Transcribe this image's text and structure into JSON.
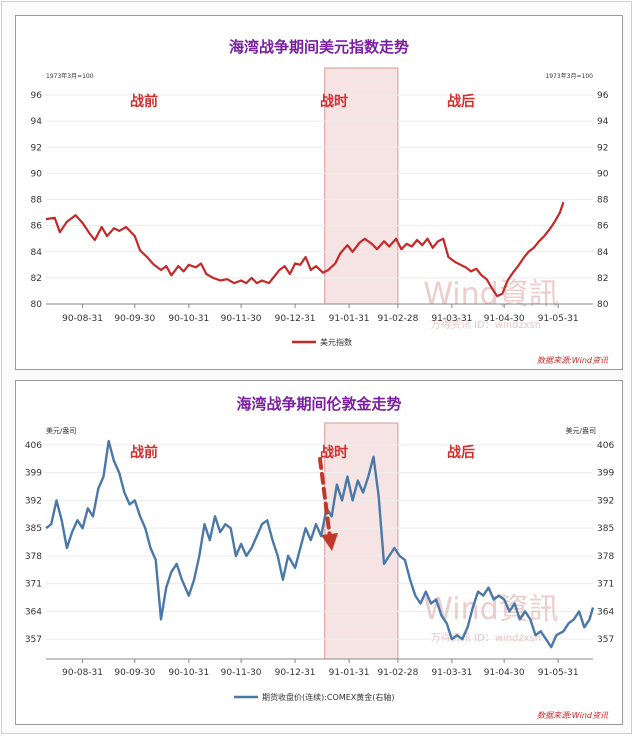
{
  "colors": {
    "title": "#7b1fa2",
    "phase_label": "#d32f2f",
    "usd_line": "#c62828",
    "gold_line": "#4a78a8",
    "war_band_fill": "#f6e4e4",
    "war_band_stroke": "#d79a9a",
    "arrow": "#c0392b",
    "watermark": "#e4b8b8",
    "source": "#c62828",
    "axis_text": "#333333",
    "grid": "#ececec"
  },
  "chart_data": [
    {
      "type": "line",
      "title": "海湾战争期间美元指数走势",
      "left_note": "1973年3月=100",
      "right_note": "1973年3月=100",
      "legend": "美元指数",
      "source": "数据来源:Wind资讯",
      "watermark": "Wind資訊",
      "watermark_sub": "万得资讯  ID：windzxsh",
      "phases": [
        "战前",
        "战时",
        "战后"
      ],
      "x_ticks": [
        "90-08-31",
        "90-09-30",
        "90-10-31",
        "90-11-30",
        "90-12-31",
        "91-01-31",
        "91-02-28",
        "91-03-31",
        "91-04-30",
        "91-05-31"
      ],
      "war_band": [
        "1991-01-17",
        "1991-02-28"
      ],
      "x_range": [
        "1990-08-10",
        "1991-06-20"
      ],
      "ylim": [
        80,
        97
      ],
      "y_ticks": [
        80,
        82,
        84,
        86,
        88,
        90,
        92,
        94,
        96
      ],
      "grid": "horizontal",
      "series": [
        {
          "name": "美元指数",
          "points": [
            [
              "1990-08-10",
              86.5
            ],
            [
              "1990-08-15",
              86.6
            ],
            [
              "1990-08-18",
              85.5
            ],
            [
              "1990-08-22",
              86.3
            ],
            [
              "1990-08-27",
              86.8
            ],
            [
              "1990-08-31",
              86.2
            ],
            [
              "1990-09-04",
              85.4
            ],
            [
              "1990-09-07",
              84.9
            ],
            [
              "1990-09-11",
              85.9
            ],
            [
              "1990-09-14",
              85.2
            ],
            [
              "1990-09-18",
              85.8
            ],
            [
              "1990-09-21",
              85.6
            ],
            [
              "1990-09-25",
              85.9
            ],
            [
              "1990-09-30",
              85.2
            ],
            [
              "1990-10-03",
              84.1
            ],
            [
              "1990-10-07",
              83.6
            ],
            [
              "1990-10-11",
              83.0
            ],
            [
              "1990-10-15",
              82.6
            ],
            [
              "1990-10-18",
              82.9
            ],
            [
              "1990-10-21",
              82.2
            ],
            [
              "1990-10-25",
              82.9
            ],
            [
              "1990-10-28",
              82.5
            ],
            [
              "1990-10-31",
              83.0
            ],
            [
              "1990-11-04",
              82.8
            ],
            [
              "1990-11-07",
              83.1
            ],
            [
              "1990-11-10",
              82.3
            ],
            [
              "1990-11-14",
              82.0
            ],
            [
              "1990-11-18",
              81.8
            ],
            [
              "1990-11-22",
              81.9
            ],
            [
              "1990-11-26",
              81.6
            ],
            [
              "1990-11-30",
              81.8
            ],
            [
              "1990-12-03",
              81.6
            ],
            [
              "1990-12-06",
              82.0
            ],
            [
              "1990-12-09",
              81.6
            ],
            [
              "1990-12-12",
              81.8
            ],
            [
              "1990-12-16",
              81.6
            ],
            [
              "1990-12-19",
              82.1
            ],
            [
              "1990-12-22",
              82.6
            ],
            [
              "1990-12-25",
              82.9
            ],
            [
              "1990-12-28",
              82.3
            ],
            [
              "1990-12-31",
              83.1
            ],
            [
              "1991-01-03",
              83.0
            ],
            [
              "1991-01-06",
              83.6
            ],
            [
              "1991-01-09",
              82.6
            ],
            [
              "1991-01-12",
              82.9
            ],
            [
              "1991-01-16",
              82.4
            ],
            [
              "1991-01-19",
              82.6
            ],
            [
              "1991-01-23",
              83.1
            ],
            [
              "1991-01-26",
              83.9
            ],
            [
              "1991-01-30",
              84.5
            ],
            [
              "1991-02-02",
              84.0
            ],
            [
              "1991-02-06",
              84.7
            ],
            [
              "1991-02-09",
              85.0
            ],
            [
              "1991-02-13",
              84.6
            ],
            [
              "1991-02-16",
              84.2
            ],
            [
              "1991-02-20",
              84.8
            ],
            [
              "1991-02-23",
              84.4
            ],
            [
              "1991-02-27",
              85.0
            ],
            [
              "1991-03-02",
              84.2
            ],
            [
              "1991-03-05",
              84.6
            ],
            [
              "1991-03-08",
              84.4
            ],
            [
              "1991-03-11",
              84.9
            ],
            [
              "1991-03-14",
              84.5
            ],
            [
              "1991-03-17",
              85.0
            ],
            [
              "1991-03-20",
              84.3
            ],
            [
              "1991-03-23",
              84.8
            ],
            [
              "1991-03-26",
              85.0
            ],
            [
              "1991-03-29",
              83.6
            ],
            [
              "1991-04-02",
              83.2
            ],
            [
              "1991-04-05",
              83.0
            ],
            [
              "1991-04-08",
              82.8
            ],
            [
              "1991-04-11",
              82.5
            ],
            [
              "1991-04-14",
              82.7
            ],
            [
              "1991-04-17",
              82.2
            ],
            [
              "1991-04-20",
              81.9
            ],
            [
              "1991-04-23",
              81.2
            ],
            [
              "1991-04-26",
              80.6
            ],
            [
              "1991-04-29",
              80.8
            ],
            [
              "1991-05-02",
              81.8
            ],
            [
              "1991-05-05",
              82.4
            ],
            [
              "1991-05-08",
              82.9
            ],
            [
              "1991-05-11",
              83.5
            ],
            [
              "1991-05-14",
              84.0
            ],
            [
              "1991-05-17",
              84.3
            ],
            [
              "1991-05-20",
              84.8
            ],
            [
              "1991-05-23",
              85.2
            ],
            [
              "1991-05-26",
              85.7
            ],
            [
              "1991-05-29",
              86.3
            ],
            [
              "1991-06-01",
              87.0
            ],
            [
              "1991-06-03",
              87.8
            ]
          ]
        }
      ]
    },
    {
      "type": "line",
      "title": "海湾战争期间伦敦金走势",
      "left_note": "美元/盎司",
      "right_note": "美元/盎司",
      "legend": "期货收盘价(连续):COMEX黄金(右轴)",
      "source": "数据来源:Wind资讯",
      "watermark": "Wind資訊",
      "watermark_sub": "万得资讯  ID：windzxsh",
      "phases": [
        "战前",
        "战时",
        "战后"
      ],
      "x_ticks": [
        "90-08-31",
        "90-09-30",
        "90-10-31",
        "90-11-30",
        "90-12-31",
        "91-01-31",
        "91-02-28",
        "91-03-31",
        "91-04-30",
        "91-05-31"
      ],
      "war_band": [
        "1991-01-17",
        "1991-02-28"
      ],
      "x_range": [
        "1990-08-10",
        "1991-06-20"
      ],
      "ylim": [
        352,
        408
      ],
      "y_ticks": [
        357,
        364,
        371,
        378,
        385,
        392,
        399,
        406
      ],
      "grid": "horizontal",
      "series": [
        {
          "name": "期货收盘价(连续):COMEX黄金(右轴)",
          "points": [
            [
              "1990-08-10",
              385
            ],
            [
              "1990-08-13",
              386
            ],
            [
              "1990-08-16",
              392
            ],
            [
              "1990-08-19",
              387
            ],
            [
              "1990-08-22",
              380
            ],
            [
              "1990-08-25",
              384
            ],
            [
              "1990-08-28",
              387
            ],
            [
              "1990-08-31",
              385
            ],
            [
              "1990-09-03",
              390
            ],
            [
              "1990-09-06",
              388
            ],
            [
              "1990-09-09",
              395
            ],
            [
              "1990-09-12",
              398
            ],
            [
              "1990-09-15",
              407
            ],
            [
              "1990-09-18",
              402
            ],
            [
              "1990-09-21",
              399
            ],
            [
              "1990-09-24",
              394
            ],
            [
              "1990-09-27",
              391
            ],
            [
              "1990-09-30",
              392
            ],
            [
              "1990-10-03",
              388
            ],
            [
              "1990-10-06",
              385
            ],
            [
              "1990-10-09",
              380
            ],
            [
              "1990-10-12",
              377
            ],
            [
              "1990-10-15",
              362
            ],
            [
              "1990-10-18",
              370
            ],
            [
              "1990-10-21",
              374
            ],
            [
              "1990-10-24",
              376
            ],
            [
              "1990-10-27",
              372
            ],
            [
              "1990-10-31",
              368
            ],
            [
              "1990-11-03",
              372
            ],
            [
              "1990-11-06",
              378
            ],
            [
              "1990-11-09",
              386
            ],
            [
              "1990-11-12",
              382
            ],
            [
              "1990-11-15",
              388
            ],
            [
              "1990-11-18",
              384
            ],
            [
              "1990-11-21",
              386
            ],
            [
              "1990-11-24",
              385
            ],
            [
              "1990-11-27",
              378
            ],
            [
              "1990-11-30",
              381
            ],
            [
              "1990-12-03",
              378
            ],
            [
              "1990-12-06",
              380
            ],
            [
              "1990-12-09",
              383
            ],
            [
              "1990-12-12",
              386
            ],
            [
              "1990-12-15",
              387
            ],
            [
              "1990-12-18",
              382
            ],
            [
              "1990-12-21",
              378
            ],
            [
              "1990-12-24",
              372
            ],
            [
              "1990-12-27",
              378
            ],
            [
              "1990-12-31",
              375
            ],
            [
              "1991-01-03",
              380
            ],
            [
              "1991-01-06",
              385
            ],
            [
              "1991-01-09",
              382
            ],
            [
              "1991-01-12",
              386
            ],
            [
              "1991-01-15",
              383
            ],
            [
              "1991-01-18",
              390
            ],
            [
              "1991-01-21",
              388
            ],
            [
              "1991-01-24",
              396
            ],
            [
              "1991-01-27",
              392
            ],
            [
              "1991-01-30",
              398
            ],
            [
              "1991-02-02",
              392
            ],
            [
              "1991-02-05",
              397
            ],
            [
              "1991-02-08",
              394
            ],
            [
              "1991-02-11",
              398
            ],
            [
              "1991-02-14",
              403
            ],
            [
              "1991-02-17",
              393
            ],
            [
              "1991-02-20",
              376
            ],
            [
              "1991-02-23",
              378
            ],
            [
              "1991-02-26",
              380
            ],
            [
              "1991-03-01",
              378
            ],
            [
              "1991-03-04",
              377
            ],
            [
              "1991-03-07",
              372
            ],
            [
              "1991-03-10",
              368
            ],
            [
              "1991-03-13",
              366
            ],
            [
              "1991-03-16",
              369
            ],
            [
              "1991-03-19",
              366
            ],
            [
              "1991-03-22",
              367
            ],
            [
              "1991-03-25",
              363
            ],
            [
              "1991-03-28",
              361
            ],
            [
              "1991-03-31",
              357
            ],
            [
              "1991-04-03",
              358
            ],
            [
              "1991-04-06",
              357
            ],
            [
              "1991-04-09",
              360
            ],
            [
              "1991-04-12",
              365
            ],
            [
              "1991-04-15",
              369
            ],
            [
              "1991-04-18",
              368
            ],
            [
              "1991-04-21",
              370
            ],
            [
              "1991-04-24",
              367
            ],
            [
              "1991-04-27",
              368
            ],
            [
              "1991-04-30",
              367
            ],
            [
              "1991-05-03",
              364
            ],
            [
              "1991-05-06",
              366
            ],
            [
              "1991-05-09",
              362
            ],
            [
              "1991-05-12",
              364
            ],
            [
              "1991-05-15",
              362
            ],
            [
              "1991-05-18",
              358
            ],
            [
              "1991-05-21",
              359
            ],
            [
              "1991-05-24",
              357
            ],
            [
              "1991-05-27",
              355
            ],
            [
              "1991-05-30",
              358
            ],
            [
              "1991-06-03",
              359
            ],
            [
              "1991-06-06",
              361
            ],
            [
              "1991-06-09",
              362
            ],
            [
              "1991-06-12",
              364
            ],
            [
              "1991-06-15",
              360
            ],
            [
              "1991-06-18",
              362
            ],
            [
              "1991-06-20",
              365
            ]
          ]
        }
      ]
    }
  ]
}
